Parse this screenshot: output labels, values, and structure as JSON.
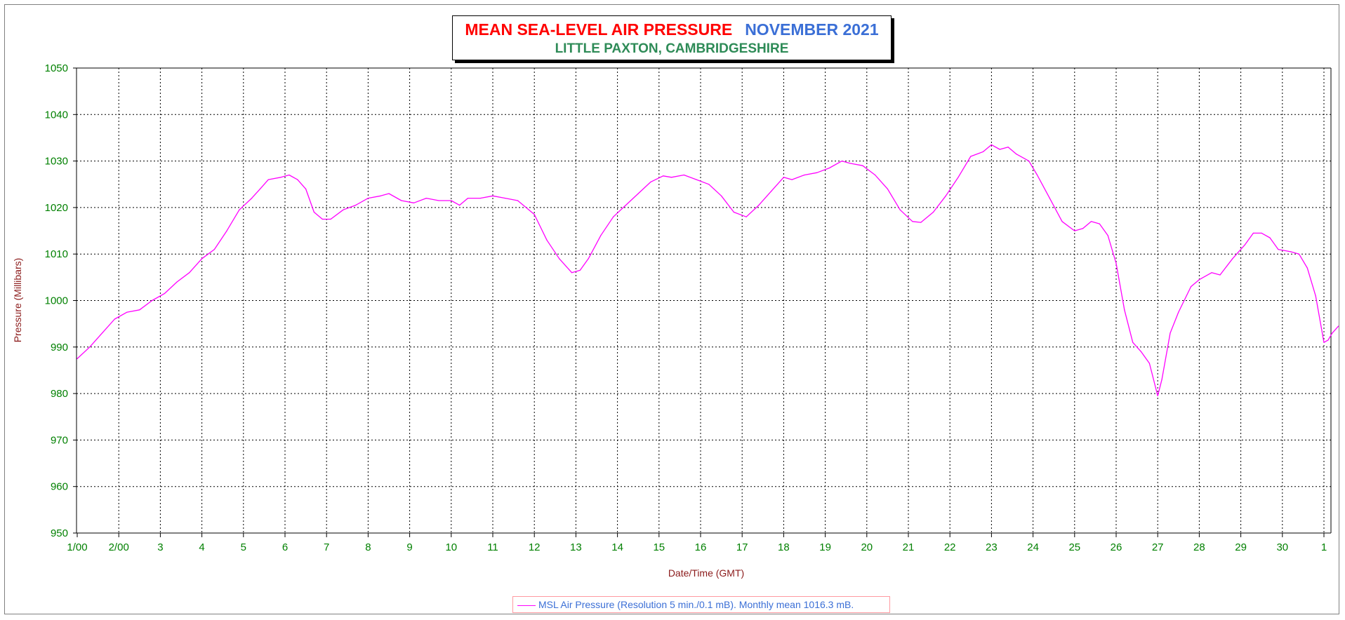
{
  "title": {
    "main": "MEAN SEA-LEVEL AIR PRESSURE",
    "month": "NOVEMBER 2021",
    "subtitle": "LITTLE PAXTON, CAMBRIDGESHIRE"
  },
  "legend": {
    "label": "MSL Air Pressure (Resolution 5 min./0.1 mB). Monthly mean 1016.3 mB."
  },
  "colors": {
    "series": "#ff00ff",
    "tick_labels": "#008000",
    "axis_titles": "#8b1a1a",
    "title_main": "#ff0000",
    "title_month": "#3b6fd6",
    "subtitle": "#2e8b57"
  },
  "chart_data": {
    "type": "line",
    "xlabel": "Date/Time (GMT)",
    "ylabel": "Pressure (Millibars)",
    "ylim": [
      950,
      1050
    ],
    "xlim": [
      0,
      30.35
    ],
    "grid": true,
    "legend_placement": "bottom-center",
    "x_unit": "days since 1 Nov 00:00 GMT",
    "x_ticks": [
      {
        "x": 0,
        "label": "1/00"
      },
      {
        "x": 1,
        "label": "2/00"
      },
      {
        "x": 2,
        "label": "3"
      },
      {
        "x": 3,
        "label": "4"
      },
      {
        "x": 4,
        "label": "5"
      },
      {
        "x": 5,
        "label": "6"
      },
      {
        "x": 6,
        "label": "7"
      },
      {
        "x": 7,
        "label": "8"
      },
      {
        "x": 8,
        "label": "9"
      },
      {
        "x": 9,
        "label": "10"
      },
      {
        "x": 10,
        "label": "11"
      },
      {
        "x": 11,
        "label": "12"
      },
      {
        "x": 12,
        "label": "13"
      },
      {
        "x": 13,
        "label": "14"
      },
      {
        "x": 14,
        "label": "15"
      },
      {
        "x": 15,
        "label": "16"
      },
      {
        "x": 16,
        "label": "17"
      },
      {
        "x": 17,
        "label": "18"
      },
      {
        "x": 18,
        "label": "19"
      },
      {
        "x": 19,
        "label": "20"
      },
      {
        "x": 20,
        "label": "21"
      },
      {
        "x": 21,
        "label": "22"
      },
      {
        "x": 22,
        "label": "23"
      },
      {
        "x": 23,
        "label": "24"
      },
      {
        "x": 24,
        "label": "25"
      },
      {
        "x": 25,
        "label": "26"
      },
      {
        "x": 26,
        "label": "27"
      },
      {
        "x": 27,
        "label": "28"
      },
      {
        "x": 28,
        "label": "29"
      },
      {
        "x": 29,
        "label": "30"
      },
      {
        "x": 30,
        "label": "1"
      }
    ],
    "y_ticks": [
      950,
      960,
      970,
      980,
      990,
      1000,
      1010,
      1020,
      1030,
      1040,
      1050
    ],
    "series": [
      {
        "name": "MSL Air Pressure",
        "points": [
          [
            0,
            987.5
          ],
          [
            0.3,
            990
          ],
          [
            0.6,
            993
          ],
          [
            0.9,
            996
          ],
          [
            1.2,
            997.5
          ],
          [
            1.5,
            998
          ],
          [
            1.8,
            1000
          ],
          [
            2.1,
            1001.5
          ],
          [
            2.4,
            1004
          ],
          [
            2.7,
            1006
          ],
          [
            3.0,
            1009
          ],
          [
            3.3,
            1011
          ],
          [
            3.6,
            1015
          ],
          [
            3.9,
            1019.5
          ],
          [
            4.2,
            1022
          ],
          [
            4.4,
            1024
          ],
          [
            4.6,
            1026
          ],
          [
            4.9,
            1026.5
          ],
          [
            5.1,
            1027
          ],
          [
            5.3,
            1026
          ],
          [
            5.5,
            1024
          ],
          [
            5.7,
            1019
          ],
          [
            5.9,
            1017.5
          ],
          [
            6.1,
            1017.5
          ],
          [
            6.4,
            1019.5
          ],
          [
            6.7,
            1020.5
          ],
          [
            7.0,
            1022
          ],
          [
            7.3,
            1022.5
          ],
          [
            7.5,
            1023
          ],
          [
            7.8,
            1021.5
          ],
          [
            8.1,
            1021
          ],
          [
            8.4,
            1022
          ],
          [
            8.7,
            1021.5
          ],
          [
            9.0,
            1021.5
          ],
          [
            9.2,
            1020.5
          ],
          [
            9.4,
            1022
          ],
          [
            9.7,
            1022
          ],
          [
            10.0,
            1022.5
          ],
          [
            10.3,
            1022
          ],
          [
            10.6,
            1021.5
          ],
          [
            10.8,
            1020
          ],
          [
            11.0,
            1018.5
          ],
          [
            11.3,
            1013
          ],
          [
            11.6,
            1009
          ],
          [
            11.9,
            1006
          ],
          [
            12.1,
            1006.5
          ],
          [
            12.3,
            1009
          ],
          [
            12.6,
            1014
          ],
          [
            12.9,
            1018
          ],
          [
            13.2,
            1020.5
          ],
          [
            13.5,
            1023
          ],
          [
            13.8,
            1025.5
          ],
          [
            14.1,
            1026.8
          ],
          [
            14.3,
            1026.5
          ],
          [
            14.6,
            1027
          ],
          [
            14.9,
            1026
          ],
          [
            15.2,
            1025
          ],
          [
            15.5,
            1022.5
          ],
          [
            15.8,
            1019
          ],
          [
            16.1,
            1018
          ],
          [
            16.4,
            1020.5
          ],
          [
            16.7,
            1023.5
          ],
          [
            17.0,
            1026.5
          ],
          [
            17.2,
            1026
          ],
          [
            17.5,
            1027
          ],
          [
            17.8,
            1027.5
          ],
          [
            18.1,
            1028.5
          ],
          [
            18.4,
            1030
          ],
          [
            18.6,
            1029.5
          ],
          [
            18.9,
            1029
          ],
          [
            19.2,
            1027
          ],
          [
            19.5,
            1024
          ],
          [
            19.8,
            1019.5
          ],
          [
            20.1,
            1017
          ],
          [
            20.3,
            1016.8
          ],
          [
            20.6,
            1019
          ],
          [
            20.9,
            1022.5
          ],
          [
            21.2,
            1026.5
          ],
          [
            21.5,
            1031
          ],
          [
            21.8,
            1032
          ],
          [
            22.0,
            1033.5
          ],
          [
            22.2,
            1032.5
          ],
          [
            22.4,
            1033
          ],
          [
            22.6,
            1031.5
          ],
          [
            22.9,
            1030
          ],
          [
            23.1,
            1027
          ],
          [
            23.4,
            1022
          ],
          [
            23.7,
            1017
          ],
          [
            24.0,
            1015
          ],
          [
            24.2,
            1015.5
          ],
          [
            24.4,
            1017
          ],
          [
            24.6,
            1016.5
          ],
          [
            24.8,
            1014
          ],
          [
            25.0,
            1008
          ],
          [
            25.2,
            998
          ],
          [
            25.4,
            991
          ],
          [
            25.6,
            989
          ],
          [
            25.8,
            986.5
          ],
          [
            26.0,
            979.5
          ],
          [
            26.1,
            983
          ],
          [
            26.3,
            993
          ],
          [
            26.5,
            997.5
          ],
          [
            26.8,
            1003
          ],
          [
            27.0,
            1004.5
          ],
          [
            27.3,
            1006
          ],
          [
            27.5,
            1005.5
          ],
          [
            27.8,
            1009
          ],
          [
            28.1,
            1012
          ],
          [
            28.3,
            1014.5
          ],
          [
            28.5,
            1014.5
          ],
          [
            28.7,
            1013.5
          ],
          [
            28.9,
            1011
          ],
          [
            29.2,
            1010.5
          ],
          [
            29.4,
            1010
          ],
          [
            29.6,
            1007
          ],
          [
            29.8,
            1001
          ],
          [
            30.0,
            991
          ],
          [
            30.1,
            991.5
          ],
          [
            30.2,
            993
          ],
          [
            30.35,
            994.5
          ]
        ]
      }
    ]
  }
}
